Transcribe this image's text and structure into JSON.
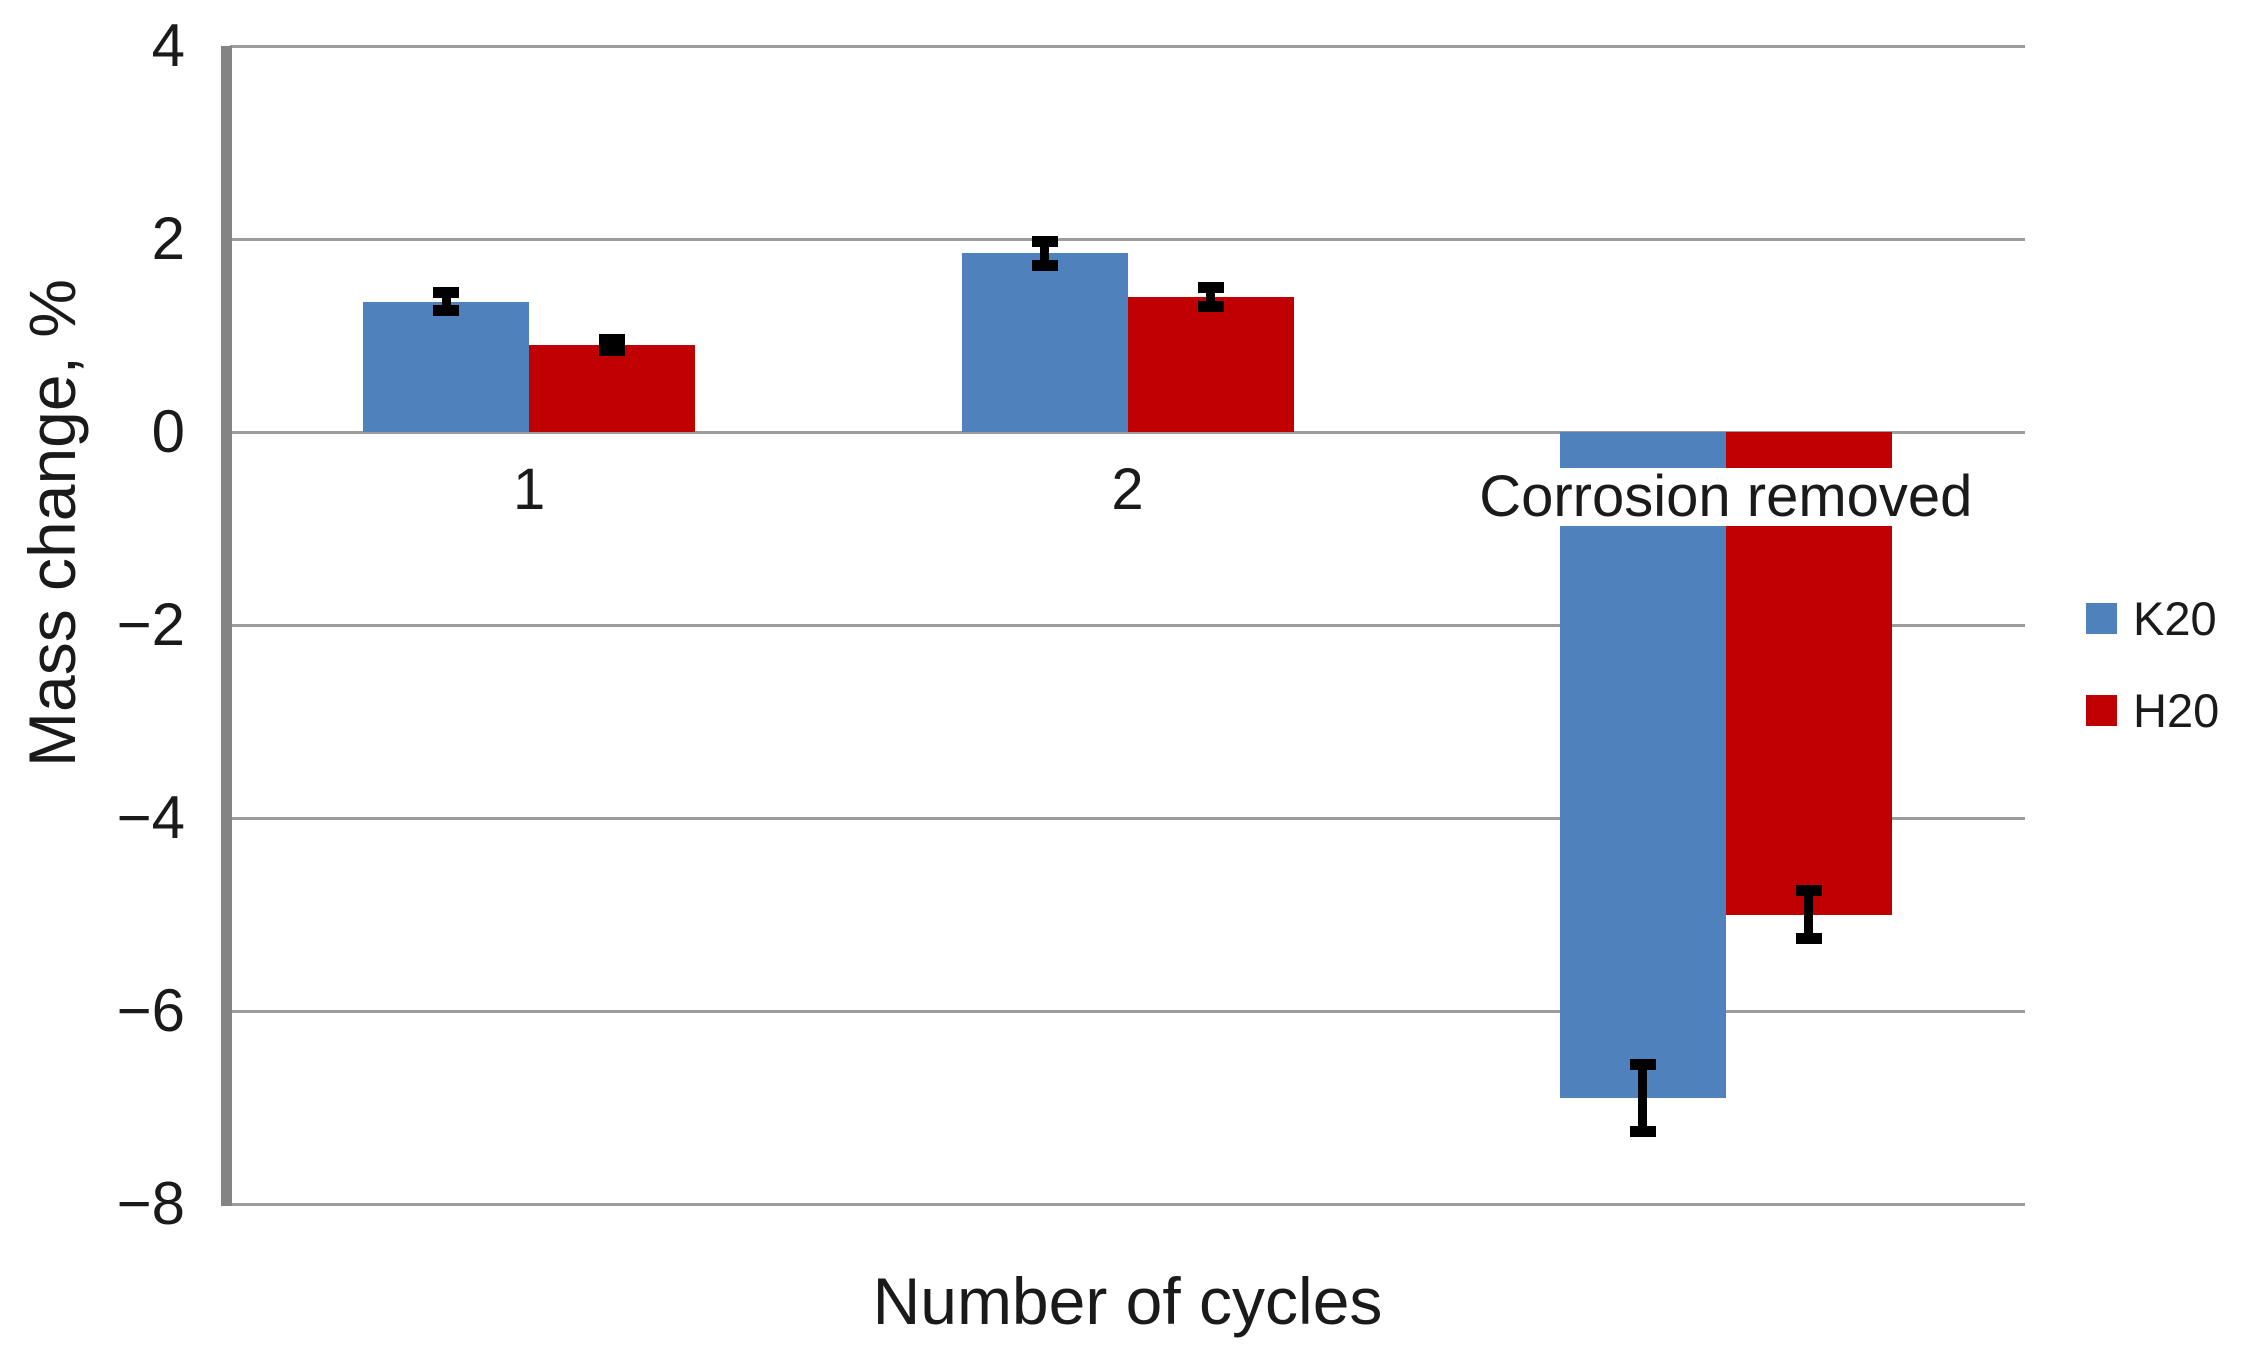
{
  "chart_data": {
    "type": "bar",
    "title": "",
    "xlabel": "Number of cycles",
    "ylabel": "Mass change, %",
    "categories": [
      "1",
      "2",
      "Corrosion removed"
    ],
    "series": [
      {
        "name": "K20",
        "color": "#4F81BD",
        "values": [
          1.35,
          1.85,
          -6.9
        ],
        "errors": [
          0.1,
          0.13,
          0.35
        ]
      },
      {
        "name": "H20",
        "color": "#C00000",
        "values": [
          0.9,
          1.4,
          -5.0
        ],
        "errors": [
          0.06,
          0.1,
          0.25
        ]
      }
    ],
    "ylim": [
      -8,
      4
    ],
    "yticks": [
      {
        "value": 4,
        "label": "4"
      },
      {
        "value": 2,
        "label": "2"
      },
      {
        "value": 0,
        "label": "0"
      },
      {
        "value": -2,
        "label": "−2"
      },
      {
        "value": -4,
        "label": "−4"
      },
      {
        "value": -6,
        "label": "−6"
      },
      {
        "value": -8,
        "label": "−8"
      }
    ],
    "grid": true,
    "legend_position": "right",
    "gridline_color": "#9c9c9c",
    "axis_line_color": "#848484",
    "error_bar_color": "#000000",
    "text_color": "#1a1a1a",
    "background_color": "#ffffff"
  }
}
